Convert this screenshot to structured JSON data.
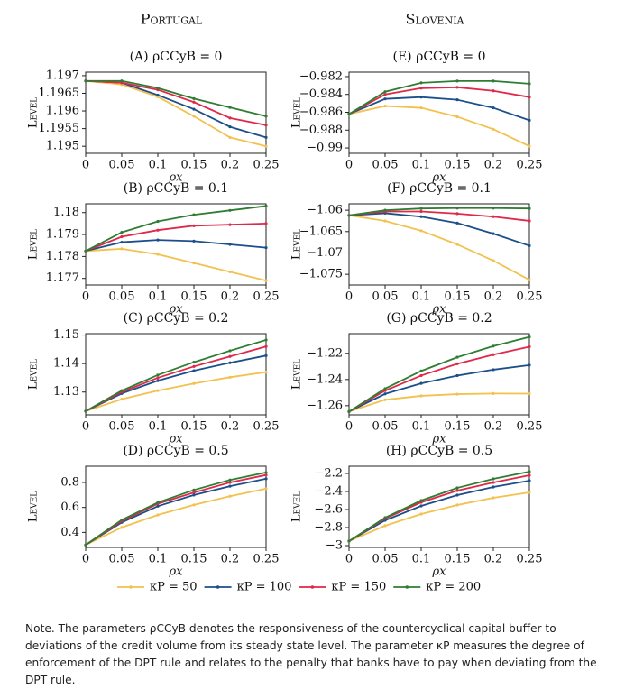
{
  "columns": [
    "Portugal",
    "Slovenia"
  ],
  "chart_data": [
    {
      "type": "line",
      "title": "(A) ρCCyB = 0",
      "xlabel": "ρx",
      "ylabel": "Level",
      "x": [
        0,
        0.05,
        0.1,
        0.15,
        0.2,
        0.25
      ],
      "xlim": [
        0,
        0.25
      ],
      "xticks": [
        0,
        0.05,
        0.1,
        0.15,
        0.2,
        0.25
      ],
      "ylim": [
        1.1948,
        1.1971
      ],
      "yticks": [
        1.195,
        1.1955,
        1.196,
        1.1965,
        1.197
      ],
      "series": [
        {
          "name": "κP = 50",
          "color": "#f2c14e",
          "values": [
            1.19685,
            1.19675,
            1.1964,
            1.19585,
            1.19525,
            1.195
          ]
        },
        {
          "name": "κP = 100",
          "color": "#1b4f8a",
          "values": [
            1.19685,
            1.1968,
            1.19645,
            1.19605,
            1.19555,
            1.19525
          ]
        },
        {
          "name": "κP = 150",
          "color": "#e0284a",
          "values": [
            1.19685,
            1.1968,
            1.1966,
            1.19625,
            1.1958,
            1.1956
          ]
        },
        {
          "name": "κP = 200",
          "color": "#2e7d32",
          "values": [
            1.19685,
            1.19685,
            1.19665,
            1.19635,
            1.1961,
            1.19585
          ]
        }
      ]
    },
    {
      "type": "line",
      "title": "(B) ρCCyB = 0.1",
      "xlabel": "ρx",
      "ylabel": "Level",
      "x": [
        0,
        0.05,
        0.1,
        0.15,
        0.2,
        0.25
      ],
      "xlim": [
        0,
        0.25
      ],
      "xticks": [
        0,
        0.05,
        0.1,
        0.15,
        0.2,
        0.25
      ],
      "ylim": [
        1.1767,
        1.1804
      ],
      "yticks": [
        1.177,
        1.178,
        1.179,
        1.18
      ],
      "series": [
        {
          "name": "κP = 50",
          "color": "#f2c14e",
          "values": [
            1.17825,
            1.17835,
            1.1781,
            1.1777,
            1.1773,
            1.1769
          ]
        },
        {
          "name": "κP = 100",
          "color": "#1b4f8a",
          "values": [
            1.17825,
            1.17865,
            1.17875,
            1.1787,
            1.17855,
            1.1784
          ]
        },
        {
          "name": "κP = 150",
          "color": "#e0284a",
          "values": [
            1.17825,
            1.1789,
            1.1792,
            1.1794,
            1.17945,
            1.1795
          ]
        },
        {
          "name": "κP = 200",
          "color": "#2e7d32",
          "values": [
            1.17825,
            1.1791,
            1.1796,
            1.1799,
            1.1801,
            1.1803
          ]
        }
      ]
    },
    {
      "type": "line",
      "title": "(C) ρCCyB = 0.2",
      "xlabel": "ρx",
      "ylabel": "Level",
      "x": [
        0,
        0.05,
        0.1,
        0.15,
        0.2,
        0.25
      ],
      "xlim": [
        0,
        0.25
      ],
      "xticks": [
        0,
        0.05,
        0.1,
        0.15,
        0.2,
        0.25
      ],
      "ylim": [
        1.122,
        1.1505
      ],
      "yticks": [
        1.13,
        1.14,
        1.15
      ],
      "series": [
        {
          "name": "κP = 50",
          "color": "#f2c14e",
          "values": [
            1.1233,
            1.1275,
            1.1305,
            1.133,
            1.1352,
            1.137
          ]
        },
        {
          "name": "κP = 100",
          "color": "#1b4f8a",
          "values": [
            1.1233,
            1.1295,
            1.134,
            1.1375,
            1.1403,
            1.1428
          ]
        },
        {
          "name": "κP = 150",
          "color": "#e0284a",
          "values": [
            1.1233,
            1.13,
            1.135,
            1.139,
            1.1425,
            1.146
          ]
        },
        {
          "name": "κP = 200",
          "color": "#2e7d32",
          "values": [
            1.1233,
            1.1305,
            1.136,
            1.1405,
            1.1445,
            1.1483
          ]
        }
      ]
    },
    {
      "type": "line",
      "title": "(D) ρCCyB = 0.5",
      "xlabel": "ρx",
      "ylabel": "Level",
      "x": [
        0,
        0.05,
        0.1,
        0.15,
        0.2,
        0.25
      ],
      "xlim": [
        0,
        0.25
      ],
      "xticks": [
        0,
        0.05,
        0.1,
        0.15,
        0.2,
        0.25
      ],
      "ylim": [
        0.28,
        0.93
      ],
      "yticks": [
        0.4,
        0.6,
        0.8
      ],
      "series": [
        {
          "name": "κP = 50",
          "color": "#f2c14e",
          "values": [
            0.3,
            0.44,
            0.54,
            0.62,
            0.69,
            0.75
          ]
        },
        {
          "name": "κP = 100",
          "color": "#1b4f8a",
          "values": [
            0.3,
            0.48,
            0.61,
            0.7,
            0.77,
            0.83
          ]
        },
        {
          "name": "κP = 150",
          "color": "#e0284a",
          "values": [
            0.3,
            0.49,
            0.63,
            0.72,
            0.8,
            0.86
          ]
        },
        {
          "name": "κP = 200",
          "color": "#2e7d32",
          "values": [
            0.3,
            0.5,
            0.64,
            0.74,
            0.82,
            0.88
          ]
        }
      ]
    },
    {
      "type": "line",
      "title": "(E) ρCCyB = 0",
      "xlabel": "ρx",
      "ylabel": "Level",
      "x": [
        0,
        0.05,
        0.1,
        0.15,
        0.2,
        0.25
      ],
      "xlim": [
        0,
        0.25
      ],
      "xticks": [
        0,
        0.05,
        0.1,
        0.15,
        0.2,
        0.25
      ],
      "ylim": [
        -0.9906,
        -0.9815
      ],
      "yticks": [
        {
          "value": -0.982,
          "label": "−0.982"
        },
        {
          "value": -0.984,
          "label": "−0.984"
        },
        {
          "value": -0.986,
          "label": "−0.986"
        },
        {
          "value": -0.988,
          "label": "−0.988"
        },
        {
          "value": -0.99,
          "label": "−0.99"
        }
      ],
      "series": [
        {
          "name": "κP = 50",
          "color": "#f2c14e",
          "values": [
            -0.9862,
            -0.9853,
            -0.9855,
            -0.9865,
            -0.9879,
            -0.9898
          ]
        },
        {
          "name": "κP = 100",
          "color": "#1b4f8a",
          "values": [
            -0.9862,
            -0.9845,
            -0.9843,
            -0.9846,
            -0.9855,
            -0.9869
          ]
        },
        {
          "name": "κP = 150",
          "color": "#e0284a",
          "values": [
            -0.9862,
            -0.984,
            -0.9833,
            -0.9832,
            -0.9836,
            -0.9843
          ]
        },
        {
          "name": "κP = 200",
          "color": "#2e7d32",
          "values": [
            -0.9862,
            -0.9837,
            -0.9827,
            -0.9825,
            -0.9825,
            -0.9828
          ]
        }
      ]
    },
    {
      "type": "line",
      "title": "(F) ρCCyB = 0.1",
      "xlabel": "ρx",
      "ylabel": "Level",
      "x": [
        0,
        0.05,
        0.1,
        0.15,
        0.2,
        0.25
      ],
      "xlim": [
        0,
        0.25
      ],
      "xticks": [
        0,
        0.05,
        0.1,
        0.15,
        0.2,
        0.25
      ],
      "ylim": [
        -1.0775,
        -1.0585
      ],
      "yticks": [
        {
          "value": -1.06,
          "label": "−1.06"
        },
        {
          "value": -1.065,
          "label": "−1.065"
        },
        {
          "value": -1.07,
          "label": "−1.07"
        },
        {
          "value": -1.075,
          "label": "−1.075"
        }
      ],
      "series": [
        {
          "name": "κP = 50",
          "color": "#f2c14e",
          "values": [
            -1.0612,
            -1.0625,
            -1.0648,
            -1.068,
            -1.0718,
            -1.0763
          ]
        },
        {
          "name": "κP = 100",
          "color": "#1b4f8a",
          "values": [
            -1.0612,
            -1.0607,
            -1.0615,
            -1.063,
            -1.0655,
            -1.0683
          ]
        },
        {
          "name": "κP = 150",
          "color": "#e0284a",
          "values": [
            -1.0612,
            -1.0603,
            -1.0603,
            -1.0608,
            -1.0615,
            -1.0625
          ]
        },
        {
          "name": "κP = 200",
          "color": "#2e7d32",
          "values": [
            -1.0612,
            -1.06,
            -1.0596,
            -1.0595,
            -1.0595,
            -1.0596
          ]
        }
      ]
    },
    {
      "type": "line",
      "title": "(G) ρCCyB = 0.2",
      "xlabel": "ρx",
      "ylabel": "Level",
      "x": [
        0,
        0.05,
        0.1,
        0.15,
        0.2,
        0.25
      ],
      "xlim": [
        0,
        0.25
      ],
      "xticks": [
        0,
        0.05,
        0.1,
        0.15,
        0.2,
        0.25
      ],
      "ylim": [
        -1.267,
        -1.205
      ],
      "yticks": [
        {
          "value": -1.22,
          "label": "−1.22"
        },
        {
          "value": -1.24,
          "label": "−1.24"
        },
        {
          "value": -1.26,
          "label": "−1.26"
        }
      ],
      "series": [
        {
          "name": "κP = 50",
          "color": "#f2c14e",
          "values": [
            -1.2645,
            -1.2555,
            -1.2525,
            -1.2512,
            -1.2507,
            -1.2508
          ]
        },
        {
          "name": "κP = 100",
          "color": "#1b4f8a",
          "values": [
            -1.2645,
            -1.251,
            -1.243,
            -1.237,
            -1.2325,
            -1.229
          ]
        },
        {
          "name": "κP = 150",
          "color": "#e0284a",
          "values": [
            -1.2645,
            -1.2485,
            -1.237,
            -1.228,
            -1.221,
            -1.215
          ]
        },
        {
          "name": "κP = 200",
          "color": "#2e7d32",
          "values": [
            -1.2645,
            -1.247,
            -1.2335,
            -1.223,
            -1.2145,
            -1.2075
          ]
        }
      ]
    },
    {
      "type": "line",
      "title": "(H) ρCCyB = 0.5",
      "xlabel": "ρx",
      "ylabel": "Level",
      "x": [
        0,
        0.05,
        0.1,
        0.15,
        0.2,
        0.25
      ],
      "xlim": [
        0,
        0.25
      ],
      "xticks": [
        0,
        0.05,
        0.1,
        0.15,
        0.2,
        0.25
      ],
      "ylim": [
        -3.02,
        -2.12
      ],
      "yticks": [
        {
          "value": -2.2,
          "label": "−2.2"
        },
        {
          "value": -2.4,
          "label": "−2.4"
        },
        {
          "value": -2.6,
          "label": "−2.6"
        },
        {
          "value": -2.8,
          "label": "−2.8"
        },
        {
          "value": -3,
          "label": "−3"
        }
      ],
      "series": [
        {
          "name": "κP = 50",
          "color": "#f2c14e",
          "values": [
            -2.95,
            -2.78,
            -2.65,
            -2.55,
            -2.47,
            -2.41
          ]
        },
        {
          "name": "κP = 100",
          "color": "#1b4f8a",
          "values": [
            -2.95,
            -2.72,
            -2.56,
            -2.44,
            -2.35,
            -2.28
          ]
        },
        {
          "name": "κP = 150",
          "color": "#e0284a",
          "values": [
            -2.95,
            -2.7,
            -2.52,
            -2.39,
            -2.3,
            -2.22
          ]
        },
        {
          "name": "κP = 200",
          "color": "#2e7d32",
          "values": [
            -2.95,
            -2.69,
            -2.5,
            -2.36,
            -2.26,
            -2.18
          ]
        }
      ]
    }
  ],
  "note": "Note. The parameters ρCCyB denotes the responsiveness of the countercyclical capital buffer to deviations of the credit volume from its steady state level. The parameter κP measures the degree of enforcement of the DPT rule and relates to the penalty that banks have to pay when deviating from the DPT rule."
}
